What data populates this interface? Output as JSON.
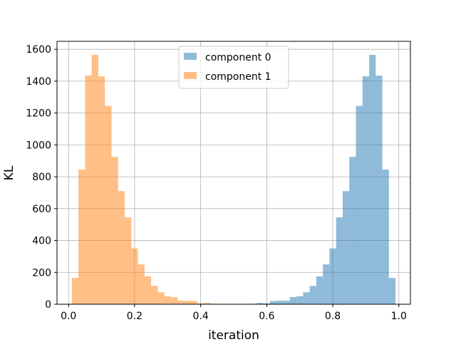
{
  "chart_data": {
    "type": "bar",
    "title": "",
    "xlabel": "iteration",
    "ylabel": "KL",
    "xlim": [
      -0.035,
      1.035
    ],
    "ylim": [
      0,
      1650
    ],
    "xticks": [
      0.0,
      0.2,
      0.4,
      0.6,
      0.8,
      1.0
    ],
    "xtick_labels": [
      "0.0",
      "0.2",
      "0.4",
      "0.6",
      "0.8",
      "1.0"
    ],
    "yticks": [
      0,
      200,
      400,
      600,
      800,
      1000,
      1200,
      1400,
      1600
    ],
    "ytick_labels": [
      "0",
      "200",
      "400",
      "600",
      "800",
      "1000",
      "1200",
      "1400",
      "1600"
    ],
    "grid": true,
    "legend_position": "top-center",
    "bin_width": 0.02,
    "series": [
      {
        "name": "component 0",
        "color": "#1f77b4",
        "opacity": 0.5,
        "bin_starts": [
          0.55,
          0.57,
          0.59,
          0.61,
          0.63,
          0.65,
          0.67,
          0.69,
          0.71,
          0.73,
          0.75,
          0.77,
          0.79,
          0.81,
          0.83,
          0.85,
          0.87,
          0.89,
          0.91,
          0.93,
          0.95,
          0.97
        ],
        "values": [
          3,
          8,
          5,
          20,
          22,
          22,
          45,
          50,
          75,
          115,
          175,
          250,
          350,
          545,
          710,
          925,
          1245,
          1430,
          1565,
          1435,
          845,
          165
        ]
      },
      {
        "name": "component 1",
        "color": "#ff7f0e",
        "opacity": 0.5,
        "bin_starts": [
          0.01,
          0.03,
          0.05,
          0.07,
          0.09,
          0.11,
          0.13,
          0.15,
          0.17,
          0.19,
          0.21,
          0.23,
          0.25,
          0.27,
          0.29,
          0.31,
          0.33,
          0.35,
          0.37,
          0.39,
          0.41,
          0.43
        ],
        "values": [
          165,
          845,
          1435,
          1565,
          1430,
          1245,
          925,
          710,
          545,
          350,
          250,
          175,
          115,
          75,
          50,
          45,
          22,
          22,
          20,
          5,
          8,
          3
        ]
      }
    ]
  }
}
